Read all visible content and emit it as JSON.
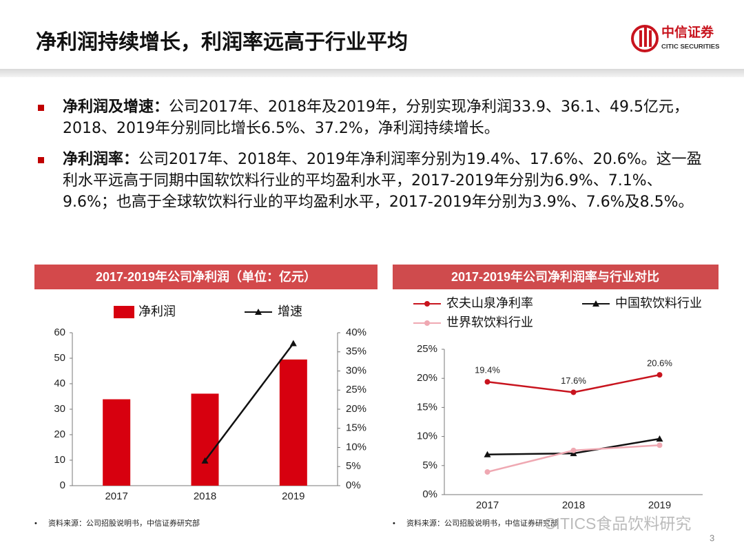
{
  "header": {
    "title": "净利润持续增长，利润率远高于行业平均",
    "logo_cn": "中信证券",
    "logo_en": "CITIC SECURITIES"
  },
  "bullets": [
    {
      "lead": "净利润及增速：",
      "text": "公司2017年、2018年及2019年，分别实现净利润33.9、36.1、49.5亿元，2018、2019年分别同比增长6.5%、37.2%，净利润持续增长。"
    },
    {
      "lead": "净利润率：",
      "text": "公司2017年、2018年、2019年净利润率分别为19.4%、17.6%、20.6%。这一盈利水平远高于同期中国软饮料行业的平均盈利水平，2017-2019年分别为6.9%、7.1%、9.6%；也高于全球软饮料行业的平均盈利水平，2017-2019年分别为3.9%、7.6%及8.5%。"
    }
  ],
  "chart_data": [
    {
      "type": "bar",
      "title": "2017-2019年公司净利润（单位：亿元）",
      "categories": [
        "2017",
        "2018",
        "2019"
      ],
      "series": [
        {
          "name": "净利润",
          "type": "bar",
          "color": "#d7000f",
          "values": [
            33.9,
            36.1,
            49.5
          ]
        },
        {
          "name": "增速",
          "type": "line",
          "axis": "y2",
          "marker": "triangle",
          "color": "#111111",
          "values": [
            null,
            6.5,
            37.2
          ]
        }
      ],
      "ylim": [
        0,
        60
      ],
      "yticks": [
        0,
        10,
        20,
        30,
        40,
        50,
        60
      ],
      "y2lim": [
        0,
        40
      ],
      "y2ticks": [
        {
          "value": 0,
          "label": "0%"
        },
        {
          "value": 5,
          "label": "5%"
        },
        {
          "value": 10,
          "label": "10%"
        },
        {
          "value": 15,
          "label": "15%"
        },
        {
          "value": 20,
          "label": "20%"
        },
        {
          "value": 25,
          "label": "25%"
        },
        {
          "value": 30,
          "label": "30%"
        },
        {
          "value": 35,
          "label": "35%"
        },
        {
          "value": 40,
          "label": "40%"
        }
      ],
      "source": "资料来源：公司招股说明书，中信证券研究部"
    },
    {
      "type": "line",
      "title": "2017-2019年公司净利润率与行业对比",
      "categories": [
        "2017",
        "2018",
        "2019"
      ],
      "series": [
        {
          "name": "农夫山泉净利率",
          "marker": "circle",
          "color": "#c8141e",
          "values": [
            19.4,
            17.6,
            20.6
          ],
          "value_labels": [
            "19.4%",
            "17.6%",
            "20.6%"
          ]
        },
        {
          "name": "中国软饮料行业",
          "marker": "triangle",
          "color": "#111111",
          "values": [
            6.9,
            7.1,
            9.6
          ]
        },
        {
          "name": "世界软饮料行业",
          "marker": "circle",
          "color": "#efa8b2",
          "values": [
            3.9,
            7.6,
            8.5
          ]
        }
      ],
      "ylim": [
        0,
        25
      ],
      "yticks": [
        {
          "value": 0,
          "label": "0%"
        },
        {
          "value": 5,
          "label": "5%"
        },
        {
          "value": 10,
          "label": "10%"
        },
        {
          "value": 15,
          "label": "15%"
        },
        {
          "value": 20,
          "label": "20%"
        },
        {
          "value": 25,
          "label": "25%"
        }
      ],
      "source": "资料来源：公司招股说明书，中信证券研究部"
    }
  ],
  "watermark": "CITICS食品饮料研究",
  "page_number": "3"
}
